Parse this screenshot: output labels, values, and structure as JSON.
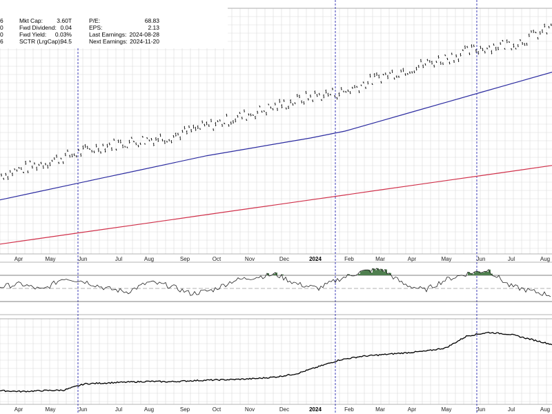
{
  "header": {
    "left_fragments": [
      "6",
      "0",
      "0",
      "6"
    ],
    "stats": [
      {
        "label": "Mkt Cap:",
        "value": "3.60T"
      },
      {
        "label": "Fwd Dividend:",
        "value": "0.04"
      },
      {
        "label": "Fwd Yield:",
        "value": "0.03%"
      },
      {
        "label": "SCTR (LrgCap):",
        "value": "94.5"
      }
    ],
    "stats2": [
      {
        "label": "P/E:",
        "value": "68.83"
      },
      {
        "label": "EPS:",
        "value": "2.13"
      },
      {
        "label": "Last Earnings:",
        "value": "2024-08-28"
      },
      {
        "label": "Next Earnings:",
        "value": "2024-11-20"
      }
    ]
  },
  "axis": {
    "months_top": [
      "Apr",
      "May",
      "Jun",
      "Jul",
      "Aug",
      "Sep",
      "Oct",
      "Nov",
      "Dec",
      "2024",
      "Feb",
      "Mar",
      "Apr",
      "May",
      "Jun",
      "Jul",
      "Aug"
    ],
    "months_bottom": [
      "Apr",
      "May",
      "Jun",
      "Jul",
      "Aug",
      "Sep",
      "Oct",
      "Nov",
      "Dec",
      "2024",
      "Feb",
      "Mar",
      "Apr",
      "May",
      "Jun",
      "Jul",
      "Aug"
    ]
  },
  "colors": {
    "price": "#000000",
    "ma_short": "#2b2ba0",
    "ma_long": "#d0304a",
    "fill_positive": "#4f7f4f",
    "grid": "#d9d9d9",
    "event_line": "#2a2ab0"
  },
  "chart_data": [
    {
      "type": "line",
      "panel": "price",
      "x": [
        0,
        5,
        10,
        15,
        20,
        25,
        30,
        35,
        40,
        45,
        50,
        55,
        60,
        65,
        70,
        75,
        80
      ],
      "series": [
        {
          "values": [
            36,
            38,
            40,
            42,
            43,
            44,
            46,
            48,
            50,
            52,
            53,
            56,
            58,
            60,
            62,
            63,
            66
          ]
        },
        {
          "values": [
            31,
            32.5,
            34,
            35.5,
            37,
            38.5,
            40,
            41.2,
            42.4,
            43.6,
            45,
            47,
            49,
            51,
            53,
            55,
            57
          ]
        },
        {
          "values": [
            22,
            23,
            24,
            25,
            26,
            27,
            28,
            29,
            30,
            31,
            32,
            33,
            34,
            35,
            36,
            37,
            38
          ]
        }
      ],
      "ylim": [
        20,
        70
      ]
    },
    {
      "type": "area",
      "panel": "indicator",
      "values": [
        52,
        55,
        48,
        62,
        58,
        50,
        46,
        57,
        53,
        44,
        48,
        59,
        63,
        66,
        55,
        50,
        61,
        69,
        72,
        55,
        48,
        60,
        67,
        71,
        53,
        47,
        42
      ],
      "upper": 65,
      "lower": 35,
      "ylim": [
        20,
        80
      ]
    },
    {
      "type": "line",
      "panel": "relative",
      "values": [
        8,
        7.5,
        8,
        8.3,
        12,
        12.5,
        13,
        13.4,
        13.2,
        13.8,
        14.2,
        14.5,
        15,
        16,
        18,
        22,
        26,
        28,
        29,
        30,
        31,
        33,
        40,
        42,
        41,
        38,
        35
      ],
      "ylim": [
        0,
        50
      ]
    }
  ]
}
